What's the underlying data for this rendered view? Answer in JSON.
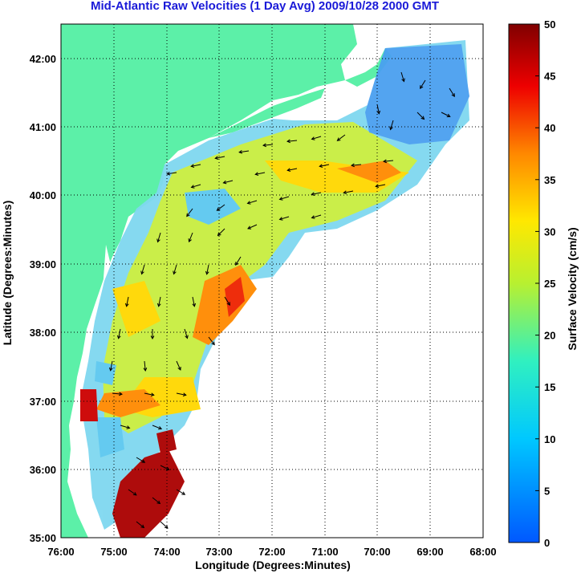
{
  "chart_data": {
    "type": "heatmap",
    "title": "Mid-Atlantic Raw Velocities (1 Day Avg) 2009/10/28 2000 GMT",
    "xlabel": "Longitude (Degrees:Minutes)",
    "ylabel": "Latitude (Degrees:Minutes)",
    "xlim": [
      -76,
      -68
    ],
    "ylim": [
      35,
      42.5
    ],
    "x_ticks": [
      "76:00",
      "75:00",
      "74:00",
      "73:00",
      "72:00",
      "71:00",
      "70:00",
      "69:00",
      "68:00"
    ],
    "y_ticks": [
      "35:00",
      "36:00",
      "37:00",
      "38:00",
      "39:00",
      "40:00",
      "41:00",
      "42:00"
    ],
    "grid": "dotted",
    "colorbar": {
      "label": "Surface Velocity (cm/s)",
      "min": 0,
      "max": 50,
      "ticks": [
        "0",
        "5",
        "10",
        "15",
        "20",
        "25",
        "30",
        "35",
        "40",
        "45",
        "50"
      ],
      "colormap": "jet"
    },
    "land_color": "#5cf0a8",
    "vectors": "black arrows showing surface current direction"
  }
}
